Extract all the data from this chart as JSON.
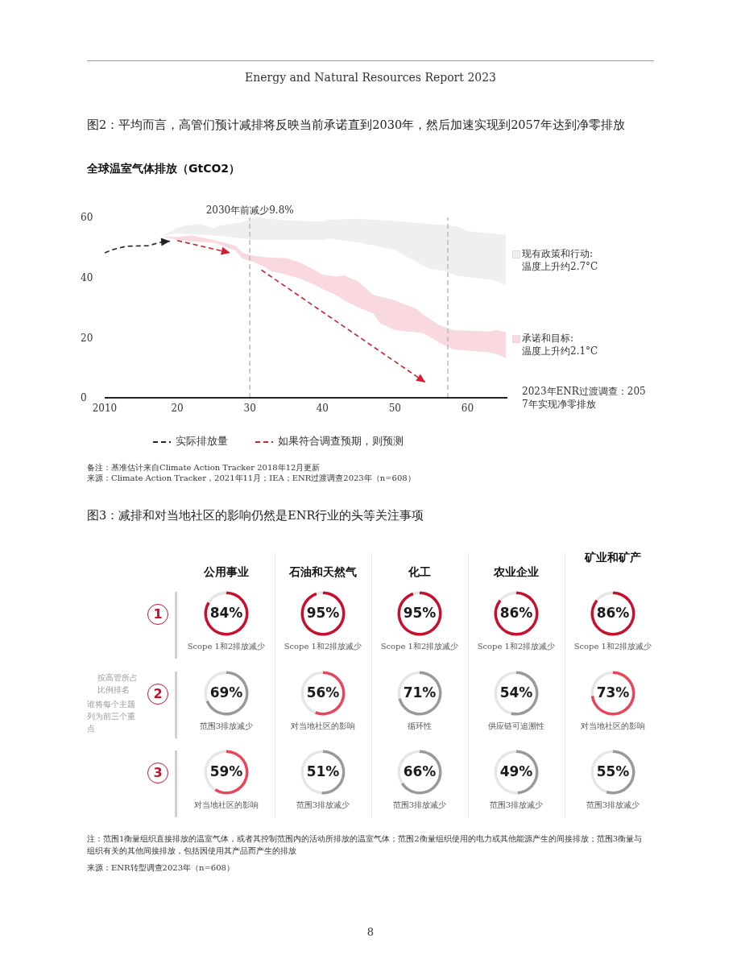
{
  "chart_data": [
    {
      "type": "line",
      "title": "图2：平均而言，高管们预计减排将反映当前承诺直到2030年，然后加速实现到2057年达到净零排放",
      "subtitle": "全球温室气体排放（GtCO2）",
      "xlim": [
        2010,
        2065.5
      ],
      "xticks": [
        2010,
        {
          "value": 2020,
          "label": "20"
        },
        {
          "value": 2030,
          "label": "30"
        },
        {
          "value": 2040,
          "label": "40"
        },
        {
          "value": 2050,
          "label": "50"
        },
        {
          "value": 2060,
          "label": "60"
        }
      ],
      "ylim": [
        0,
        60
      ],
      "yticks": [
        0,
        20,
        40,
        60
      ],
      "legend": "bottom",
      "series": [
        {
          "type": "area",
          "name": "现有政策和行动:\n温度上升约2.7°C",
          "color": "#efefef",
          "x": [
            2018,
            2020,
            2021,
            2023,
            2025,
            2026,
            2029,
            2031,
            2035,
            2040,
            2041,
            2045,
            2050,
            2051,
            2054.7,
            2056.5,
            2058.6,
            2060,
            2063.7,
            2065.3
          ],
          "values": [
            null,
            null,
            null,
            null,
            null,
            null,
            null,
            null,
            null,
            null,
            null,
            null,
            null,
            null,
            null,
            null,
            null,
            null,
            null,
            null
          ],
          "lower": [
            54,
            54.7,
            54.5,
            54.3,
            54,
            53.8,
            53,
            52.5,
            52.5,
            52.5,
            53,
            51.6,
            49.2,
            47.7,
            43,
            42.3,
            40.6,
            40.2,
            39.1,
            37.5
          ],
          "upper": [
            54,
            56.5,
            57.2,
            57.8,
            56.4,
            57.3,
            58.5,
            60,
            59,
            58.6,
            59.2,
            59.5,
            58.8,
            58.6,
            57.8,
            57.5,
            57,
            55.4,
            54.6,
            54.2
          ]
        },
        {
          "type": "area",
          "name": "承诺和目标:\n温度上升约2.1°C",
          "color": "#f9d9df",
          "x": [
            2018,
            2020,
            2022,
            2025,
            2028,
            2029,
            2030.5,
            2032,
            2033,
            2035,
            2037,
            2039,
            2040,
            2042,
            2043,
            2045,
            2047,
            2048,
            2050,
            2053,
            2054,
            2056,
            2058,
            2063,
            2064,
            2065.3
          ],
          "values": [
            null,
            null,
            null,
            null,
            null,
            null,
            null,
            null,
            null,
            null,
            null,
            null,
            null,
            null,
            null,
            null,
            null,
            null,
            null,
            null,
            null,
            null,
            null,
            null,
            null,
            null
          ],
          "lower": [
            53.6,
            52.5,
            52,
            51.6,
            49,
            46.3,
            45.3,
            43.5,
            42,
            41,
            39.6,
            37.5,
            36.2,
            34,
            32.4,
            30,
            28.1,
            24.7,
            22.5,
            21.8,
            21.4,
            18.5,
            16.1,
            15.1,
            14.5,
            13.2
          ],
          "upper": [
            53.6,
            53.5,
            54,
            52.5,
            50.6,
            48.2,
            47.3,
            46.8,
            46.6,
            46.5,
            44.9,
            42.3,
            41,
            40.3,
            40.7,
            38.6,
            34.3,
            33.6,
            32.4,
            29.5,
            27.5,
            24.3,
            22.5,
            22,
            22.5,
            21.9
          ]
        },
        {
          "type": "line",
          "name": "实际排放量",
          "color": "#222222",
          "line_style": "dashed",
          "x": [
            2010,
            2011,
            2013,
            2016,
            2018,
            2019
          ],
          "values": [
            48.2,
            49.2,
            50.4,
            50.6,
            51.9,
            52.1
          ]
        },
        {
          "type": "line",
          "name": "如果符合调查预期，则预测",
          "color": "#d0202f",
          "line_style": "dashed",
          "x": [
            2020,
            2027.3,
            2029,
            2031.6,
            2054.2
          ],
          "values": [
            52.3,
            48.2,
            null,
            42.5,
            5.1
          ]
        }
      ],
      "ref_lines": [
        {
          "axis": "x",
          "value": 2030,
          "label": "2030年前减少9.8%",
          "color": "#bbbbbb",
          "line_style": "dashed"
        },
        {
          "axis": "x",
          "value": 2057.3,
          "label": null,
          "color": "#bbbbbb",
          "line_style": "dashed"
        }
      ],
      "annotations": [
        "2023年ENR过渡调查：2057年实现净零排放",
        "备注：基准估计来自Climate Action Tracker 2018年12月更新",
        "来源：Climate Action Tracker，2021年11月；IEA；ENR过渡调查2023年（n=608）",
        "Energy and Natural Resources Report 2023"
      ]
    },
    {
      "type": "other",
      "title": "图3：减排和对当地社区的影响仍然是ENR行业的头等关注事项",
      "annotations": [
        "1",
        "2",
        "3",
        "按高管所占比例排名",
        "谁将每个主题列为前三个重点",
        "注：范围1衡量组织直接排放的温室气体，或者其控制范围内的活动所排放的温室气体；范围2衡量组织使用的电力或其他能源产生的间接排放；范围3衡量与组织有关的其他间接排放，包括因使用其产品而产生的排放",
        "来源：ENR转型调查2023年（n=608）",
        "8"
      ]
    },
    {
      "type": "donut",
      "title": "公用事业",
      "categories": [
        "Scope 1和2排放减少",
        null
      ],
      "values": [
        84,
        16
      ],
      "colors": [
        "#c8102e",
        "#e6e6e6"
      ],
      "value_labels": [
        "84%",
        null
      ]
    },
    {
      "type": "donut",
      "title": "石油和天然气",
      "categories": [
        "Scope 1和2排放减少",
        null
      ],
      "values": [
        95,
        5
      ],
      "colors": [
        "#c8102e",
        "#e6e6e6"
      ],
      "value_labels": [
        "95%",
        null
      ]
    },
    {
      "type": "donut",
      "title": "化工",
      "categories": [
        "Scope 1和2排放减少",
        null
      ],
      "values": [
        95,
        5
      ],
      "colors": [
        "#c8102e",
        "#e6e6e6"
      ],
      "value_labels": [
        "95%",
        null
      ]
    },
    {
      "type": "donut",
      "title": "农业企业",
      "categories": [
        "Scope 1和2排放减少",
        null
      ],
      "values": [
        86,
        14
      ],
      "colors": [
        "#c8102e",
        "#e6e6e6"
      ],
      "value_labels": [
        "86%",
        null
      ]
    },
    {
      "type": "donut",
      "title": "矿业和矿产",
      "categories": [
        "Scope 1和2排放减少",
        null
      ],
      "values": [
        86,
        14
      ],
      "colors": [
        "#c8102e",
        "#e6e6e6"
      ],
      "value_labels": [
        "86%",
        null
      ]
    },
    {
      "type": "donut",
      "categories": [
        "范围3排放减少",
        null
      ],
      "values": [
        69,
        31
      ],
      "colors": [
        "#999999",
        "#e6e6e6"
      ],
      "value_labels": [
        "69%",
        null
      ]
    },
    {
      "type": "donut",
      "categories": [
        "对当地社区的影响",
        null
      ],
      "values": [
        56,
        44
      ],
      "colors": [
        "#e8455a",
        "#e6e6e6"
      ],
      "value_labels": [
        "56%",
        null
      ]
    },
    {
      "type": "donut",
      "categories": [
        "循环性",
        null
      ],
      "values": [
        71,
        29
      ],
      "colors": [
        "#999999",
        "#e6e6e6"
      ],
      "value_labels": [
        "71%",
        null
      ]
    },
    {
      "type": "donut",
      "categories": [
        "供应链可追溯性",
        null
      ],
      "values": [
        54,
        46
      ],
      "colors": [
        "#999999",
        "#e6e6e6"
      ],
      "value_labels": [
        "54%",
        null
      ]
    },
    {
      "type": "donut",
      "categories": [
        "对当地社区的影响",
        null
      ],
      "values": [
        73,
        27
      ],
      "colors": [
        "#e8455a",
        "#e6e6e6"
      ],
      "value_labels": [
        "73%",
        null
      ]
    },
    {
      "type": "donut",
      "categories": [
        "对当地社区的影响",
        null
      ],
      "values": [
        59,
        41
      ],
      "colors": [
        "#e8455a",
        "#e6e6e6"
      ],
      "value_labels": [
        "59%",
        null
      ]
    },
    {
      "type": "donut",
      "categories": [
        "范围3排放减少",
        null
      ],
      "values": [
        51,
        49
      ],
      "colors": [
        "#999999",
        "#e6e6e6"
      ],
      "value_labels": [
        "51%",
        null
      ]
    },
    {
      "type": "donut",
      "categories": [
        "范围3排放减少",
        null
      ],
      "values": [
        66,
        34
      ],
      "colors": [
        "#999999",
        "#e6e6e6"
      ],
      "value_labels": [
        "66%",
        null
      ]
    },
    {
      "type": "donut",
      "categories": [
        "范围3排放减少",
        null
      ],
      "values": [
        49,
        51
      ],
      "colors": [
        "#999999",
        "#e6e6e6"
      ],
      "value_labels": [
        "49%",
        null
      ]
    },
    {
      "type": "donut",
      "categories": [
        "范围3排放减少",
        null
      ],
      "values": [
        55,
        45
      ],
      "colors": [
        "#999999",
        "#e6e6e6"
      ],
      "value_labels": [
        "55%",
        null
      ]
    }
  ]
}
